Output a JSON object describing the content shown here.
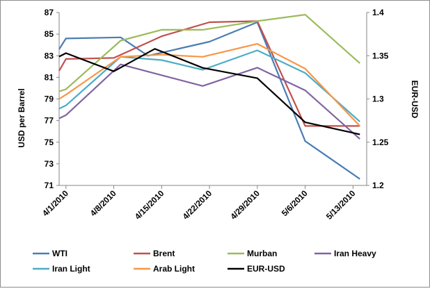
{
  "chart_data": {
    "type": "line",
    "x": [
      "4/1/2010",
      "4/8/2010",
      "4/15/2010",
      "4/22/2010",
      "4/29/2010",
      "5/6/2010",
      "5/13/2010"
    ],
    "xlabel": "",
    "ylabel": "USD per Barrel",
    "y2label": "EUR-USD",
    "ylim": [
      71,
      87
    ],
    "yticks": [
      "71",
      "73",
      "75",
      "77",
      "79",
      "81",
      "83",
      "85",
      "87"
    ],
    "y2lim": [
      1.2,
      1.4
    ],
    "y2ticks": [
      "1.2",
      "1.25",
      "1.3",
      "1.35",
      "1.4"
    ],
    "grid": false,
    "legend_position": "bottom",
    "series": [
      {
        "name": "WTI",
        "color": "#4a7db5",
        "axis": "left",
        "points": [
          [
            "2010-03-31",
            83.6
          ],
          [
            "2010-04-01",
            84.6
          ],
          [
            "2010-04-09",
            84.7
          ],
          [
            "2010-04-13",
            83.0
          ],
          [
            "2010-04-22",
            84.3
          ],
          [
            "2010-04-29",
            86.1
          ],
          [
            "2010-05-06",
            75.1
          ],
          [
            "2010-05-14",
            71.6
          ]
        ]
      },
      {
        "name": "Brent",
        "color": "#c0504d",
        "axis": "left",
        "points": [
          [
            "2010-03-31",
            81.6
          ],
          [
            "2010-04-01",
            82.7
          ],
          [
            "2010-04-08",
            82.8
          ],
          [
            "2010-04-15",
            84.8
          ],
          [
            "2010-04-22",
            86.1
          ],
          [
            "2010-04-29",
            86.2
          ],
          [
            "2010-05-06",
            76.5
          ],
          [
            "2010-05-14",
            76.5
          ]
        ]
      },
      {
        "name": "Murban",
        "color": "#9bbb59",
        "axis": "left",
        "points": [
          [
            "2010-03-31",
            79.7
          ],
          [
            "2010-04-01",
            79.9
          ],
          [
            "2010-04-09",
            84.4
          ],
          [
            "2010-04-15",
            85.4
          ],
          [
            "2010-04-21",
            85.4
          ],
          [
            "2010-04-29",
            86.2
          ],
          [
            "2010-05-06",
            86.8
          ],
          [
            "2010-05-14",
            82.3
          ]
        ]
      },
      {
        "name": "Iran Heavy",
        "color": "#8064a2",
        "axis": "left",
        "points": [
          [
            "2010-03-31",
            77.2
          ],
          [
            "2010-04-01",
            77.5
          ],
          [
            "2010-04-09",
            82.2
          ],
          [
            "2010-04-15",
            81.2
          ],
          [
            "2010-04-21",
            80.2
          ],
          [
            "2010-04-29",
            81.9
          ],
          [
            "2010-05-06",
            79.8
          ],
          [
            "2010-05-14",
            75.3
          ]
        ]
      },
      {
        "name": "Iran Light",
        "color": "#4bacc6",
        "axis": "left",
        "points": [
          [
            "2010-03-31",
            78.1
          ],
          [
            "2010-04-01",
            78.4
          ],
          [
            "2010-04-09",
            82.9
          ],
          [
            "2010-04-15",
            82.6
          ],
          [
            "2010-04-21",
            81.7
          ],
          [
            "2010-04-29",
            83.5
          ],
          [
            "2010-05-06",
            81.4
          ],
          [
            "2010-05-14",
            76.9
          ]
        ]
      },
      {
        "name": "Arab Light",
        "color": "#f79646",
        "axis": "left",
        "points": [
          [
            "2010-03-31",
            79.0
          ],
          [
            "2010-04-01",
            79.4
          ],
          [
            "2010-04-09",
            82.9
          ],
          [
            "2010-04-15",
            83.1
          ],
          [
            "2010-04-21",
            82.9
          ],
          [
            "2010-04-29",
            84.1
          ],
          [
            "2010-05-06",
            81.8
          ],
          [
            "2010-05-14",
            76.5
          ]
        ]
      },
      {
        "name": "EUR-USD",
        "color": "#000000",
        "axis": "right",
        "points": [
          [
            "2010-03-31",
            1.349
          ],
          [
            "2010-04-01",
            1.353
          ],
          [
            "2010-04-08",
            1.332
          ],
          [
            "2010-04-14",
            1.358
          ],
          [
            "2010-04-21",
            1.336
          ],
          [
            "2010-04-29",
            1.324
          ],
          [
            "2010-05-06",
            1.273
          ],
          [
            "2010-05-14",
            1.259
          ]
        ]
      }
    ]
  }
}
